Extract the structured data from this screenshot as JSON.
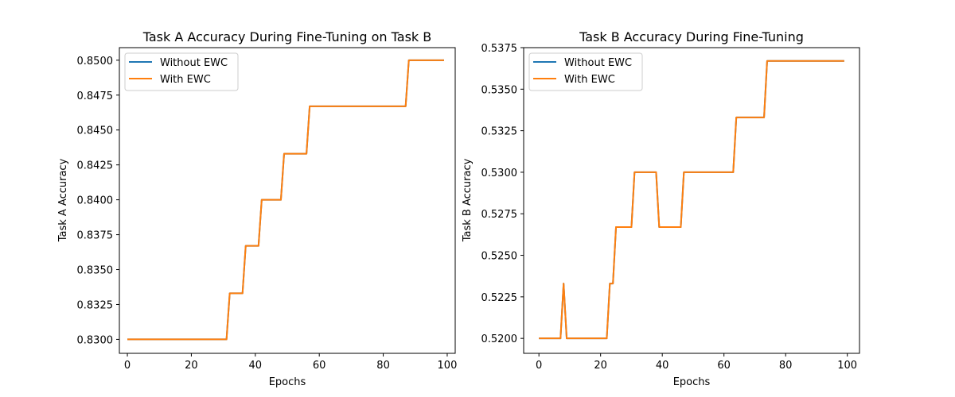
{
  "colors": {
    "without_ewc": "#1f77b4",
    "with_ewc": "#ff7f0e"
  },
  "chart_data": [
    {
      "type": "line",
      "title": "Task A Accuracy During Fine-Tuning on Task B",
      "xlabel": "Epochs",
      "ylabel": "Task A Accuracy",
      "xlim": [
        -2.5,
        102.5
      ],
      "ylim": [
        0.829,
        0.8509
      ],
      "xticks": [
        0,
        20,
        40,
        60,
        80,
        100
      ],
      "xtick_labels": [
        "0",
        "20",
        "40",
        "60",
        "80",
        "100"
      ],
      "yticks": [
        0.83,
        0.8325,
        0.835,
        0.8375,
        0.84,
        0.8425,
        0.845,
        0.8475,
        0.85
      ],
      "ytick_labels": [
        "0.8300",
        "0.8325",
        "0.8350",
        "0.8375",
        "0.8400",
        "0.8425",
        "0.8450",
        "0.8475",
        "0.8500"
      ],
      "legend": "upper left",
      "grid": false,
      "series": [
        {
          "name": "Without EWC",
          "color_key": "without_ewc",
          "points": [
            [
              0,
              0.83
            ],
            [
              31,
              0.83
            ],
            [
              32,
              0.8333
            ],
            [
              36,
              0.8333
            ],
            [
              37,
              0.8367
            ],
            [
              41,
              0.8367
            ],
            [
              42,
              0.84
            ],
            [
              48,
              0.84
            ],
            [
              49,
              0.8433
            ],
            [
              56,
              0.8433
            ],
            [
              57,
              0.8467
            ],
            [
              87,
              0.8467
            ],
            [
              88,
              0.85
            ],
            [
              99,
              0.85
            ]
          ]
        },
        {
          "name": "With EWC",
          "color_key": "with_ewc",
          "points": [
            [
              0,
              0.83
            ],
            [
              31,
              0.83
            ],
            [
              32,
              0.8333
            ],
            [
              36,
              0.8333
            ],
            [
              37,
              0.8367
            ],
            [
              41,
              0.8367
            ],
            [
              42,
              0.84
            ],
            [
              48,
              0.84
            ],
            [
              49,
              0.8433
            ],
            [
              56,
              0.8433
            ],
            [
              57,
              0.8467
            ],
            [
              87,
              0.8467
            ],
            [
              88,
              0.85
            ],
            [
              99,
              0.85
            ]
          ]
        }
      ]
    },
    {
      "type": "line",
      "title": "Task B Accuracy During Fine-Tuning",
      "xlabel": "Epochs",
      "ylabel": "Task B Accuracy",
      "xlim": [
        -4.95,
        103.95
      ],
      "ylim": [
        0.5191,
        0.5375
      ],
      "xticks": [
        0,
        20,
        40,
        60,
        80,
        100
      ],
      "xtick_labels": [
        "0",
        "20",
        "40",
        "60",
        "80",
        "100"
      ],
      "yticks": [
        0.52,
        0.5225,
        0.525,
        0.5275,
        0.53,
        0.5325,
        0.535,
        0.5375
      ],
      "ytick_labels": [
        "0.5200",
        "0.5225",
        "0.5250",
        "0.5275",
        "0.5300",
        "0.5325",
        "0.5350",
        "0.5375"
      ],
      "legend": "upper left",
      "grid": false,
      "series": [
        {
          "name": "Without EWC",
          "color_key": "without_ewc",
          "points": [
            [
              0,
              0.52
            ],
            [
              7,
              0.52
            ],
            [
              8,
              0.5233
            ],
            [
              9,
              0.52
            ],
            [
              22,
              0.52
            ],
            [
              23,
              0.5233
            ],
            [
              24,
              0.5233
            ],
            [
              25,
              0.5267
            ],
            [
              30,
              0.5267
            ],
            [
              31,
              0.53
            ],
            [
              38,
              0.53
            ],
            [
              39,
              0.5267
            ],
            [
              46,
              0.5267
            ],
            [
              47,
              0.53
            ],
            [
              63,
              0.53
            ],
            [
              64,
              0.5333
            ],
            [
              73,
              0.5333
            ],
            [
              74,
              0.5367
            ],
            [
              99,
              0.5367
            ]
          ]
        },
        {
          "name": "With EWC",
          "color_key": "with_ewc",
          "points": [
            [
              0,
              0.52
            ],
            [
              7,
              0.52
            ],
            [
              8,
              0.5233
            ],
            [
              9,
              0.52
            ],
            [
              22,
              0.52
            ],
            [
              23,
              0.5233
            ],
            [
              24,
              0.5233
            ],
            [
              25,
              0.5267
            ],
            [
              30,
              0.5267
            ],
            [
              31,
              0.53
            ],
            [
              38,
              0.53
            ],
            [
              39,
              0.5267
            ],
            [
              46,
              0.5267
            ],
            [
              47,
              0.53
            ],
            [
              63,
              0.53
            ],
            [
              64,
              0.5333
            ],
            [
              73,
              0.5333
            ],
            [
              74,
              0.5367
            ],
            [
              99,
              0.5367
            ]
          ]
        }
      ]
    }
  ]
}
